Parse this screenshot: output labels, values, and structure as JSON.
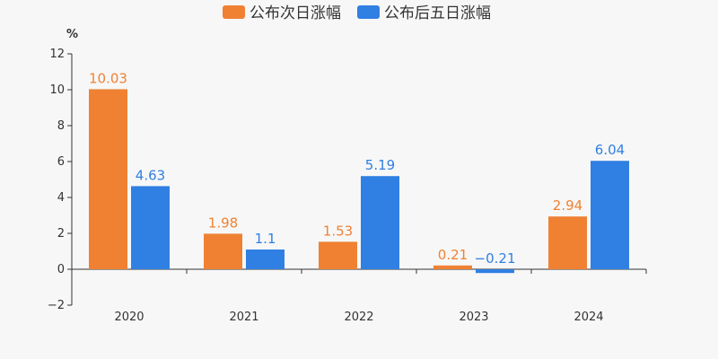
{
  "chart_data": {
    "type": "bar",
    "title": "",
    "xlabel": "",
    "ylabel": "",
    "y_unit": "%",
    "categories": [
      "2020",
      "2021",
      "2022",
      "2023",
      "2024"
    ],
    "series": [
      {
        "name": "公布次日涨幅",
        "color": "#f08133",
        "values": [
          10.03,
          1.98,
          1.53,
          0.21,
          2.94
        ],
        "labels": [
          "10.03",
          "1.98",
          "1.53",
          "0.21",
          "2.94"
        ]
      },
      {
        "name": "公布后五日涨幅",
        "color": "#3080e3",
        "values": [
          4.63,
          1.1,
          5.19,
          -0.21,
          6.04
        ],
        "labels": [
          "4.63",
          "1.1",
          "5.19",
          "−0.21",
          "6.04"
        ]
      }
    ],
    "ylim": [
      -2,
      12
    ],
    "yticks": [
      -2,
      0,
      2,
      4,
      6,
      8,
      10,
      12
    ],
    "ytick_labels": [
      "−2",
      "0",
      "2",
      "4",
      "6",
      "8",
      "10",
      "12"
    ],
    "grid": false,
    "legend_position": "top-center"
  }
}
